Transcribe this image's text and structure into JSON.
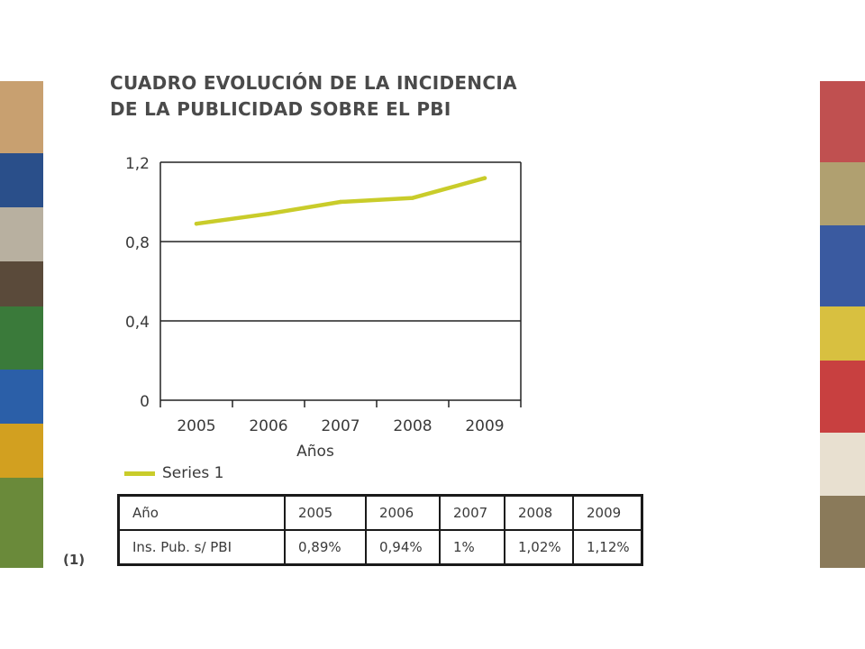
{
  "title": {
    "line1": "CUADRO EVOLUCIÓN DE LA INCIDENCIA",
    "line2": "DE LA PUBLICIDAD SOBRE EL PBI"
  },
  "chart_data": {
    "type": "line",
    "title": "CUADRO EVOLUCIÓN DE LA INCIDENCIA DE LA PUBLICIDAD SOBRE EL PBI",
    "xlabel": "Años",
    "ylabel": "",
    "categories": [
      "2005",
      "2006",
      "2007",
      "2008",
      "2009"
    ],
    "series": [
      {
        "name": "Series 1",
        "values": [
          0.89,
          0.94,
          1.0,
          1.02,
          1.12
        ],
        "color": "#c9cc2a"
      }
    ],
    "ylim": [
      0,
      1.2
    ],
    "yticks": [
      0,
      0.4,
      0.8,
      1.2
    ],
    "ytick_labels": [
      "0",
      "0,4",
      "0,8",
      "1,2"
    ],
    "grid": "horizontal",
    "legend": "bottom-left"
  },
  "table": {
    "header": [
      "Año",
      "2005",
      "2006",
      "2007",
      "2008",
      "2009"
    ],
    "rows": [
      [
        "Ins. Pub. s/ PBI",
        "0,89%",
        "0,94%",
        "1%",
        "1,02%",
        "1,12%"
      ]
    ]
  },
  "note": "(1)"
}
